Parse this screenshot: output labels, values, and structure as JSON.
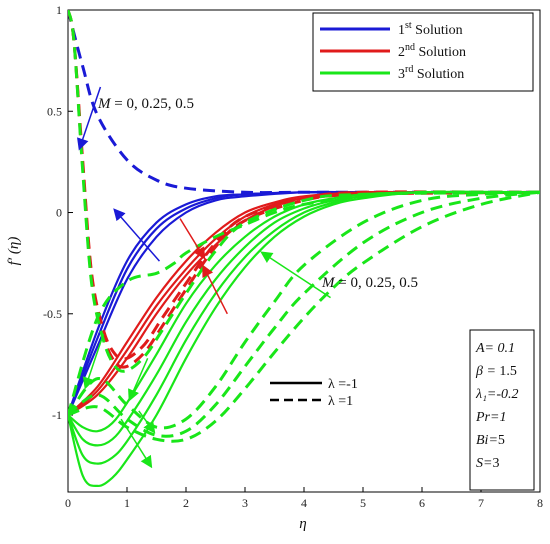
{
  "chart_data": {
    "type": "line",
    "xlabel": "η",
    "ylabel": "f′ (η)",
    "xlim": [
      0,
      8
    ],
    "ylim": [
      -1.38,
      1
    ],
    "x_ticks": [
      "0",
      "1",
      "2",
      "3",
      "4",
      "5",
      "6",
      "7",
      "8"
    ],
    "y_ticks": [
      "1",
      "0.5",
      "0",
      "-0.5",
      "-1"
    ],
    "x_tick_values": [
      0,
      1,
      2,
      3,
      4,
      5,
      6,
      7,
      8
    ],
    "y_tick_values": [
      1,
      0.5,
      0,
      -0.5,
      -1
    ],
    "colors": {
      "solution1": "#1a1ad6",
      "solution2": "#e01b1b",
      "solution3": "#19e619"
    },
    "legend": {
      "placement": "top-right",
      "entries": [
        {
          "key": "solution1",
          "base": "1",
          "sup": "st",
          "text": " Solution"
        },
        {
          "key": "solution2",
          "base": "2",
          "sup": "nd",
          "text": " Solution"
        },
        {
          "key": "solution3",
          "base": "3",
          "sup": "rd",
          "text": " Solution"
        }
      ]
    },
    "linestyle_legend": [
      {
        "style": "solid",
        "label": "λ =-1"
      },
      {
        "style": "dashed",
        "label": "λ =1"
      }
    ],
    "annotations": [
      {
        "text": "M = 0, 0.25, 0.5",
        "position": "upper-left"
      },
      {
        "text": "M = 0, 0.25, 0.5",
        "position": "middle-right"
      }
    ],
    "parameters": [
      {
        "label": "A= ",
        "value": "0.1",
        "italic_value": true
      },
      {
        "label": "β = ",
        "value": "1.5",
        "italic_value": false
      },
      {
        "label": "λ₁=",
        "value": "-0.2",
        "italic_value": true
      },
      {
        "label": "Pr=",
        "value": "1",
        "italic_value": true
      },
      {
        "label": "Bi=",
        "value": "5",
        "italic_value": false
      },
      {
        "label": "S=",
        "value": "3",
        "italic_value": false
      }
    ],
    "series": [
      {
        "solution": "solution1",
        "style": "solid",
        "x": [
          0,
          0.5,
          1,
          1.5,
          2,
          2.5,
          3,
          4,
          5,
          6,
          8
        ],
        "y": [
          -1,
          -0.58,
          -0.24,
          -0.05,
          0.04,
          0.08,
          0.09,
          0.1,
          0.1,
          0.1,
          0.1
        ]
      },
      {
        "solution": "solution1",
        "style": "solid",
        "x": [
          0,
          0.5,
          1,
          1.5,
          2,
          2.5,
          3,
          4,
          5,
          6,
          8
        ],
        "y": [
          -1,
          -0.62,
          -0.28,
          -0.08,
          0.02,
          0.07,
          0.09,
          0.1,
          0.1,
          0.1,
          0.1
        ]
      },
      {
        "solution": "solution1",
        "style": "solid",
        "x": [
          0,
          0.5,
          1,
          1.5,
          2,
          2.5,
          3,
          4,
          5,
          6,
          8
        ],
        "y": [
          -1,
          -0.66,
          -0.33,
          -0.12,
          0,
          0.06,
          0.08,
          0.1,
          0.1,
          0.1,
          0.1
        ]
      },
      {
        "solution": "solution1",
        "style": "dashed",
        "x": [
          0,
          0.25,
          0.5,
          1,
          1.5,
          2,
          3,
          4,
          6,
          8
        ],
        "y": [
          1,
          0.72,
          0.48,
          0.26,
          0.16,
          0.12,
          0.1,
          0.1,
          0.1,
          0.1
        ]
      },
      {
        "solution": "solution2",
        "style": "solid",
        "x": [
          0,
          0.5,
          1,
          1.5,
          2,
          2.5,
          3,
          3.5,
          4,
          5,
          6,
          8
        ],
        "y": [
          -1,
          -0.86,
          -0.64,
          -0.42,
          -0.24,
          -0.1,
          0,
          0.05,
          0.08,
          0.1,
          0.1,
          0.1
        ]
      },
      {
        "solution": "solution2",
        "style": "solid",
        "x": [
          0,
          0.5,
          1,
          1.5,
          2,
          2.5,
          3,
          3.5,
          4,
          5,
          6,
          8
        ],
        "y": [
          -1,
          -0.88,
          -0.68,
          -0.46,
          -0.28,
          -0.13,
          -0.02,
          0.04,
          0.07,
          0.09,
          0.1,
          0.1
        ]
      },
      {
        "solution": "solution2",
        "style": "solid",
        "x": [
          0,
          0.5,
          1,
          1.5,
          2,
          2.5,
          3,
          3.5,
          4,
          5,
          6,
          8
        ],
        "y": [
          -1,
          -0.9,
          -0.72,
          -0.5,
          -0.31,
          -0.16,
          -0.04,
          0.03,
          0.07,
          0.09,
          0.1,
          0.1
        ]
      },
      {
        "solution": "solution2",
        "style": "dashed",
        "x": [
          0,
          0.1,
          0.25,
          0.4,
          0.6,
          0.8,
          1,
          1.3,
          1.6,
          2,
          2.5,
          3,
          4,
          5,
          8
        ],
        "y": [
          1,
          0.85,
          0.25,
          -0.3,
          -0.58,
          -0.7,
          -0.72,
          -0.65,
          -0.52,
          -0.35,
          -0.15,
          -0.02,
          0.07,
          0.1,
          0.1
        ]
      },
      {
        "solution": "solution2",
        "style": "dashed",
        "x": [
          0,
          0.1,
          0.25,
          0.4,
          0.6,
          0.8,
          1,
          1.3,
          1.6,
          2,
          2.5,
          3,
          4,
          5,
          8
        ],
        "y": [
          1,
          0.85,
          0.22,
          -0.33,
          -0.61,
          -0.74,
          -0.76,
          -0.69,
          -0.56,
          -0.38,
          -0.17,
          -0.04,
          0.06,
          0.09,
          0.1
        ]
      },
      {
        "solution": "solution3",
        "style": "solid",
        "x": [
          0,
          0.25,
          0.5,
          0.75,
          1,
          1.5,
          2,
          2.5,
          3,
          3.5,
          4,
          4.5,
          5,
          6,
          8
        ],
        "y": [
          -1,
          -1.06,
          -1.08,
          -1.04,
          -0.94,
          -0.7,
          -0.45,
          -0.26,
          -0.12,
          -0.02,
          0.04,
          0.07,
          0.09,
          0.1,
          0.1
        ]
      },
      {
        "solution": "solution3",
        "style": "solid",
        "x": [
          0,
          0.25,
          0.5,
          0.75,
          1,
          1.5,
          2,
          2.5,
          3,
          3.5,
          4,
          4.5,
          5,
          6,
          8
        ],
        "y": [
          -1,
          -1.12,
          -1.15,
          -1.12,
          -1.03,
          -0.8,
          -0.54,
          -0.33,
          -0.17,
          -0.05,
          0.02,
          0.06,
          0.08,
          0.1,
          0.1
        ]
      },
      {
        "solution": "solution3",
        "style": "solid",
        "x": [
          0,
          0.25,
          0.5,
          0.75,
          1,
          1.5,
          2,
          2.5,
          3,
          3.5,
          4,
          4.5,
          5,
          6,
          8
        ],
        "y": [
          -1,
          -1.2,
          -1.24,
          -1.21,
          -1.13,
          -0.9,
          -0.63,
          -0.4,
          -0.22,
          -0.09,
          0,
          0.05,
          0.08,
          0.1,
          0.1
        ]
      },
      {
        "solution": "solution3",
        "style": "solid",
        "x": [
          0,
          0.25,
          0.5,
          0.75,
          1,
          1.5,
          2,
          2.5,
          3,
          3.5,
          4,
          4.5,
          5,
          6,
          8
        ],
        "y": [
          -1,
          -1.3,
          -1.35,
          -1.31,
          -1.22,
          -1.0,
          -0.72,
          -0.47,
          -0.27,
          -0.12,
          -0.02,
          0.04,
          0.07,
          0.1,
          0.1
        ]
      },
      {
        "solution": "solution3",
        "style": "dashed",
        "x": [
          0,
          0.1,
          0.25,
          0.4,
          0.6,
          0.8,
          1,
          1.3,
          1.6,
          2,
          2.5,
          3,
          4,
          5,
          8
        ],
        "y": [
          1,
          0.85,
          0.2,
          -0.35,
          -0.63,
          -0.76,
          -0.78,
          -0.71,
          -0.58,
          -0.4,
          -0.19,
          -0.05,
          0.06,
          0.09,
          0.1
        ]
      },
      {
        "solution": "solution3",
        "style": "dashed",
        "x": [
          0,
          0.5,
          1,
          1.5,
          1.8,
          2,
          2.5,
          3,
          3.5,
          4,
          5,
          6,
          7,
          8
        ],
        "y": [
          -1,
          -0.52,
          -0.34,
          -0.3,
          -0.25,
          -0.2,
          -0.12,
          -0.06,
          0,
          0.04,
          0.08,
          0.1,
          0.1,
          0.1
        ]
      },
      {
        "solution": "solution3",
        "style": "dashed",
        "x": [
          0,
          0.5,
          1,
          1.5,
          2,
          2.5,
          3,
          3.5,
          4,
          5,
          6,
          7,
          8
        ],
        "y": [
          -1,
          -0.82,
          -0.95,
          -1.06,
          -1.02,
          -0.86,
          -0.64,
          -0.44,
          -0.26,
          -0.05,
          0.06,
          0.09,
          0.1
        ]
      },
      {
        "solution": "solution3",
        "style": "dashed",
        "x": [
          0,
          0.5,
          1,
          1.5,
          2,
          2.5,
          3,
          3.5,
          4,
          5,
          6,
          7,
          8
        ],
        "y": [
          -1,
          -0.9,
          -1.02,
          -1.1,
          -1.08,
          -0.95,
          -0.76,
          -0.57,
          -0.4,
          -0.15,
          0,
          0.07,
          0.1
        ]
      },
      {
        "solution": "solution3",
        "style": "dashed",
        "x": [
          0,
          0.5,
          1,
          1.5,
          2,
          2.5,
          3,
          3.5,
          4,
          4.5,
          5,
          6,
          7,
          8
        ],
        "y": [
          -1,
          -0.96,
          -1.06,
          -1.12,
          -1.12,
          -1.03,
          -0.87,
          -0.69,
          -0.52,
          -0.37,
          -0.25,
          -0.07,
          0.04,
          0.1
        ]
      }
    ],
    "arrows": [
      {
        "solution": "solution1",
        "from": [
          0.55,
          0.62
        ],
        "to": [
          0.2,
          0.32
        ]
      },
      {
        "solution": "solution1",
        "from": [
          1.55,
          -0.24
        ],
        "to": [
          0.8,
          0.01
        ]
      },
      {
        "solution": "solution2",
        "from": [
          1.9,
          -0.03
        ],
        "to": [
          2.3,
          -0.22
        ]
      },
      {
        "solution": "solution2",
        "from": [
          2.7,
          -0.5
        ],
        "to": [
          2.3,
          -0.27
        ]
      },
      {
        "solution": "solution3",
        "from": [
          4.45,
          -0.42
        ],
        "to": [
          3.3,
          -0.2
        ]
      },
      {
        "solution": "solution3",
        "from": [
          0.6,
          -0.6
        ],
        "to": [
          0.3,
          -0.86
        ]
      },
      {
        "solution": "solution3",
        "from": [
          1.35,
          -0.72
        ],
        "to": [
          1.05,
          -0.92
        ]
      },
      {
        "solution": "solution3",
        "from": [
          1.2,
          -0.98
        ],
        "to": [
          1.45,
          -1.08
        ]
      },
      {
        "solution": "solution3",
        "from": [
          0.9,
          -1.02
        ],
        "to": [
          1.4,
          -1.25
        ]
      }
    ]
  }
}
